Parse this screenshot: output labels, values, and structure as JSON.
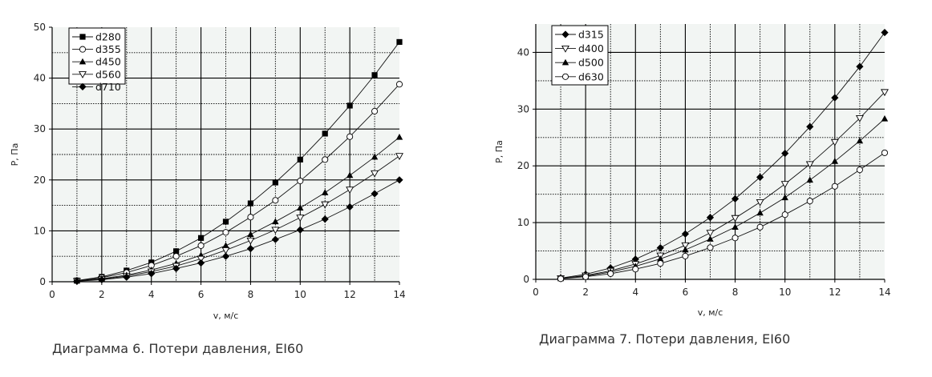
{
  "chart_data": [
    {
      "type": "line",
      "caption": "Диаграмма 6. Потери давления, EI60",
      "xlabel": "v, м/с",
      "ylabel": "P, Па",
      "xlim": [
        0,
        14
      ],
      "ylim": [
        0,
        50
      ],
      "xticks": [
        0,
        2,
        4,
        6,
        8,
        10,
        12,
        14
      ],
      "yticks": [
        0,
        10,
        20,
        30,
        40,
        50
      ],
      "grid": true,
      "legend": "top-left",
      "x": [
        1,
        2,
        3,
        4,
        5,
        6,
        7,
        8,
        9,
        10,
        11,
        12,
        13,
        14
      ],
      "series": [
        {
          "name": "d280",
          "marker": "square-filled",
          "values": [
            0.24,
            0.96,
            2.2,
            3.8,
            6.0,
            8.6,
            11.8,
            15.4,
            19.5,
            24.0,
            29.1,
            34.6,
            40.6,
            47.1
          ]
        },
        {
          "name": "d355",
          "marker": "circle-open",
          "values": [
            0.2,
            0.8,
            1.8,
            3.2,
            5.0,
            7.1,
            9.7,
            12.7,
            16.0,
            19.8,
            24.0,
            28.5,
            33.5,
            38.8
          ]
        },
        {
          "name": "d450",
          "marker": "triangle-up-filled",
          "values": [
            0.15,
            0.6,
            1.3,
            2.3,
            3.6,
            5.2,
            7.1,
            9.3,
            11.8,
            14.5,
            17.5,
            20.9,
            24.5,
            28.4
          ]
        },
        {
          "name": "d560",
          "marker": "triangle-down-open",
          "values": [
            0.13,
            0.5,
            1.1,
            2.0,
            3.1,
            4.5,
            6.2,
            8.1,
            10.2,
            12.6,
            15.2,
            18.1,
            21.3,
            24.7
          ]
        },
        {
          "name": "d710",
          "marker": "diamond-filled",
          "values": [
            0.1,
            0.4,
            0.9,
            1.6,
            2.6,
            3.7,
            5.0,
            6.5,
            8.3,
            10.2,
            12.3,
            14.7,
            17.3,
            20.0
          ]
        }
      ]
    },
    {
      "type": "line",
      "caption": "Диаграмма 7. Потери давления, EI60",
      "xlabel": "v, м/с",
      "ylabel": "P, Па",
      "xlim": [
        0,
        14
      ],
      "ylim": [
        0,
        45
      ],
      "xticks": [
        0,
        2,
        4,
        6,
        8,
        10,
        12,
        14
      ],
      "yticks": [
        0,
        10,
        20,
        30,
        40
      ],
      "grid": true,
      "legend": "top-left",
      "x": [
        1,
        2,
        3,
        4,
        5,
        6,
        7,
        8,
        9,
        10,
        11,
        12,
        13,
        14
      ],
      "series": [
        {
          "name": "d315",
          "marker": "diamond-filled",
          "values": [
            0.22,
            0.89,
            2.0,
            3.55,
            5.55,
            8.0,
            10.9,
            14.2,
            18.0,
            22.2,
            26.9,
            32.0,
            37.5,
            43.5
          ]
        },
        {
          "name": "d400",
          "marker": "triangle-down-open",
          "values": [
            0.17,
            0.67,
            1.5,
            2.7,
            4.2,
            6.0,
            8.2,
            10.8,
            13.6,
            16.8,
            20.3,
            24.2,
            28.4,
            33.0
          ]
        },
        {
          "name": "d500",
          "marker": "triangle-up-filled",
          "values": [
            0.14,
            0.58,
            1.3,
            2.3,
            3.6,
            5.2,
            7.1,
            9.2,
            11.7,
            14.4,
            17.5,
            20.8,
            24.4,
            28.3
          ]
        },
        {
          "name": "d630",
          "marker": "circle-open",
          "values": [
            0.11,
            0.46,
            1.0,
            1.8,
            2.8,
            4.1,
            5.6,
            7.3,
            9.2,
            11.4,
            13.8,
            16.4,
            19.3,
            22.3
          ]
        }
      ]
    }
  ]
}
